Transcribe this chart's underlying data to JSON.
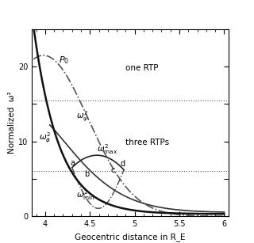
{
  "xlim": [
    3.85,
    6.05
  ],
  "ylim": [
    0,
    25
  ],
  "xlabel": "Geocentric distance in R_E",
  "ylabel": "Normalized  ω²",
  "dotted_line_upper": 15.5,
  "dotted_line_lower": 6.0,
  "label_one_rtp": "one RTP",
  "label_three_rtps": "three RTPs",
  "label_P0": "P_0",
  "label_omega_phi": "ω²φ",
  "label_omega_psi": "ω²ψ",
  "label_omega_max": "ω²_max",
  "label_omega_min": "ω²_min",
  "point_labels": [
    "a",
    "b",
    "c",
    "d"
  ],
  "background_color": "#f0f0f0",
  "curve_color_solid": "#222222",
  "curve_color_dashdot": "#555555"
}
